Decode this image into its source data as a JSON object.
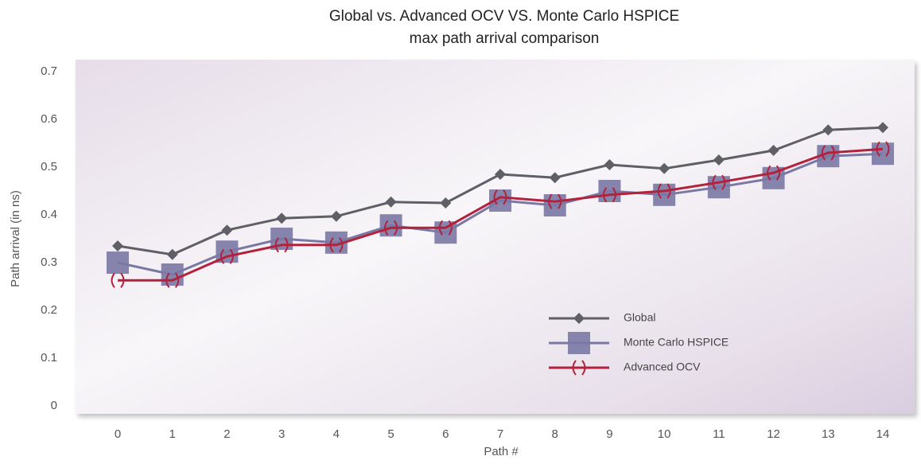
{
  "chart_data": {
    "type": "line",
    "title_lines": [
      "Global vs. Advanced OCV VS. Monte Carlo HSPICE",
      "max path arrival comparison"
    ],
    "x_label": "Path #",
    "y_label": "Path arrival (in ns)",
    "categories": [
      "0",
      "1",
      "2",
      "3",
      "4",
      "5",
      "6",
      "7",
      "8",
      "9",
      "10",
      "11",
      "12",
      "13",
      "14"
    ],
    "ylim": [
      0,
      0.7
    ],
    "yticks": [
      0,
      0.1,
      0.2,
      0.3,
      0.4,
      0.5,
      0.6,
      0.7
    ],
    "grid": false,
    "legend": "lower right",
    "series": [
      {
        "name": "Global",
        "color": "#5f5f66",
        "marker": "diamond",
        "values": [
          0.335,
          0.317,
          0.368,
          0.393,
          0.397,
          0.427,
          0.425,
          0.485,
          0.478,
          0.505,
          0.497,
          0.515,
          0.535,
          0.578,
          0.583
        ]
      },
      {
        "name": "Monte Carlo HSPICE",
        "color": "#7a78a4",
        "marker": "square",
        "values": [
          0.3,
          0.275,
          0.323,
          0.35,
          0.342,
          0.378,
          0.363,
          0.43,
          0.42,
          0.45,
          0.442,
          0.458,
          0.477,
          0.523,
          0.528
        ]
      },
      {
        "name": "Advanced OCV",
        "color": "#b3223c",
        "marker": "parens",
        "values": [
          0.263,
          0.263,
          0.313,
          0.337,
          0.337,
          0.373,
          0.373,
          0.437,
          0.428,
          0.442,
          0.45,
          0.468,
          0.488,
          0.53,
          0.538
        ]
      }
    ]
  }
}
